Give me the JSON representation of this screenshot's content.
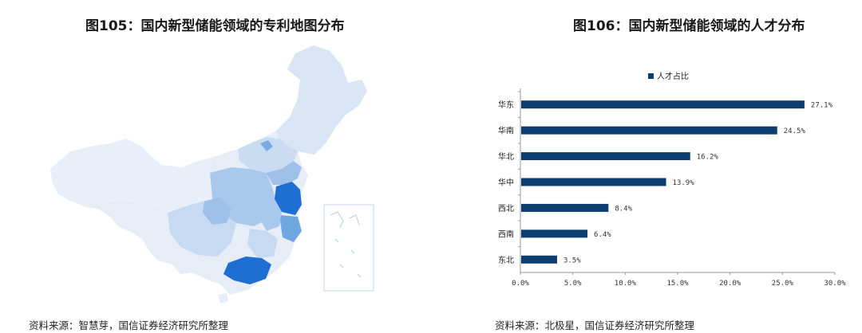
{
  "left_panel": {
    "title": "图105：国内新型储能领域的专利地图分布",
    "source": "资料来源：智慧芽，国信证券经济研究所整理",
    "colors": {
      "base": "#dde8f6",
      "light": "#c5daf1",
      "mid": "#a7c6ea",
      "strong": "#6ea6df",
      "darkest": "#1f6ed2"
    }
  },
  "right_panel": {
    "title": "图106：国内新型储能领域的人才分布",
    "source": "资料来源：北极星，国信证券经济研究所整理"
  },
  "chart_data": {
    "type": "bar",
    "orientation": "horizontal",
    "legend": "人才占比",
    "legend_position": "top",
    "categories": [
      "华东",
      "华南",
      "华北",
      "华中",
      "西北",
      "西南",
      "东北"
    ],
    "series": [
      {
        "name": "人才占比",
        "values": [
          27.1,
          24.5,
          16.2,
          13.9,
          8.4,
          6.4,
          3.5
        ],
        "color": "#0b3e6f"
      }
    ],
    "data_labels": [
      "27.1%",
      "24.5%",
      "16.2%",
      "13.9%",
      "8.4%",
      "6.4%",
      "3.5%"
    ],
    "xlim": [
      0,
      30
    ],
    "xticks": [
      "0.0%",
      "5.0%",
      "10.0%",
      "15.0%",
      "20.0%",
      "25.0%",
      "30.0%"
    ],
    "grid": false
  }
}
